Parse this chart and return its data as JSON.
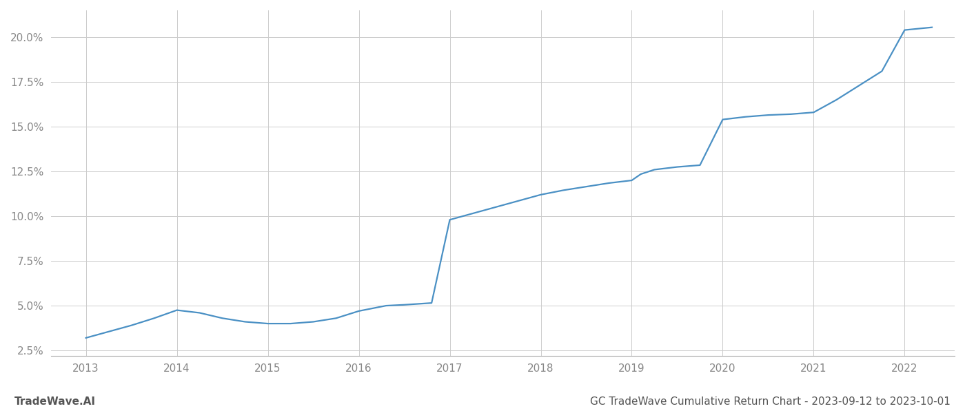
{
  "title": "GC TradeWave Cumulative Return Chart - 2023-09-12 to 2023-10-01",
  "watermark": "TradeWave.AI",
  "line_color": "#4a90c4",
  "background_color": "#ffffff",
  "grid_color": "#cccccc",
  "x_years": [
    2013,
    2014,
    2015,
    2016,
    2017,
    2018,
    2019,
    2020,
    2021,
    2022
  ],
  "x_data": [
    2013.0,
    2013.25,
    2013.5,
    2013.75,
    2014.0,
    2014.25,
    2014.5,
    2014.75,
    2015.0,
    2015.25,
    2015.5,
    2015.75,
    2016.0,
    2016.15,
    2016.3,
    2016.5,
    2016.65,
    2016.8,
    2017.0,
    2017.25,
    2017.5,
    2017.75,
    2018.0,
    2018.25,
    2018.5,
    2018.75,
    2019.0,
    2019.1,
    2019.25,
    2019.5,
    2019.75,
    2020.0,
    2020.25,
    2020.5,
    2020.75,
    2021.0,
    2021.25,
    2021.5,
    2021.75,
    2022.0,
    2022.3
  ],
  "y_data": [
    3.2,
    3.55,
    3.9,
    4.3,
    4.75,
    4.6,
    4.3,
    4.1,
    4.0,
    4.0,
    4.1,
    4.3,
    4.7,
    4.85,
    5.0,
    5.05,
    5.1,
    5.15,
    9.8,
    10.15,
    10.5,
    10.85,
    11.2,
    11.45,
    11.65,
    11.85,
    12.0,
    12.35,
    12.6,
    12.75,
    12.85,
    15.4,
    15.55,
    15.65,
    15.7,
    15.8,
    16.5,
    17.3,
    18.1,
    20.4,
    20.55
  ],
  "ylim": [
    2.2,
    21.5
  ],
  "yticks": [
    2.5,
    5.0,
    7.5,
    10.0,
    12.5,
    15.0,
    17.5,
    20.0
  ],
  "xlim": [
    2012.62,
    2022.55
  ],
  "label_color": "#888888",
  "title_color": "#555555",
  "watermark_color": "#555555",
  "line_width": 1.6,
  "title_fontsize": 11,
  "watermark_fontsize": 11,
  "tick_fontsize": 11
}
